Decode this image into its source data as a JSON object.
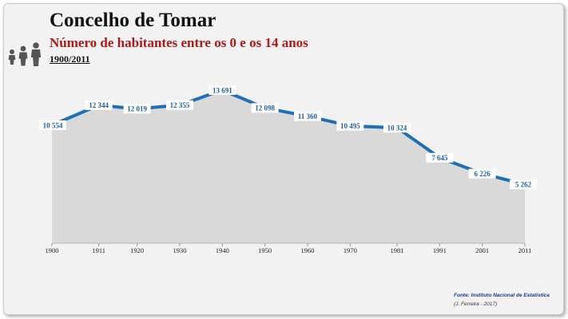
{
  "header": {
    "title": "Concelho de Tomar",
    "subtitle": "Número de habitantes entre os 0 e os 14 anos",
    "period": "1900/2011"
  },
  "icons": [
    "baby-icon",
    "child-icon",
    "adult-icon"
  ],
  "footer": {
    "source": "Fonte: Instituto Nacional de Estatística",
    "credit": "(J. Ferreira - 2017)"
  },
  "chart_data": {
    "type": "area",
    "categories": [
      "1900",
      "1911",
      "1920",
      "1930",
      "1940",
      "1950",
      "1960",
      "1970",
      "1981",
      "1991",
      "2001",
      "2011"
    ],
    "values": [
      10554,
      12344,
      12019,
      12355,
      13691,
      12098,
      11360,
      10495,
      10324,
      7645,
      6226,
      5262
    ],
    "labels": [
      "10 554",
      "12 344",
      "12 019",
      "12 355",
      "13 691",
      "12 098",
      "11 360",
      "10 495",
      "10 324",
      "7 645",
      "6 226",
      "5 262"
    ],
    "ylim": [
      0,
      15000
    ],
    "grid": false,
    "colors": {
      "line": "#1f6fb8",
      "fill": "#d9d9d9",
      "label": "#1f5fa8"
    }
  }
}
